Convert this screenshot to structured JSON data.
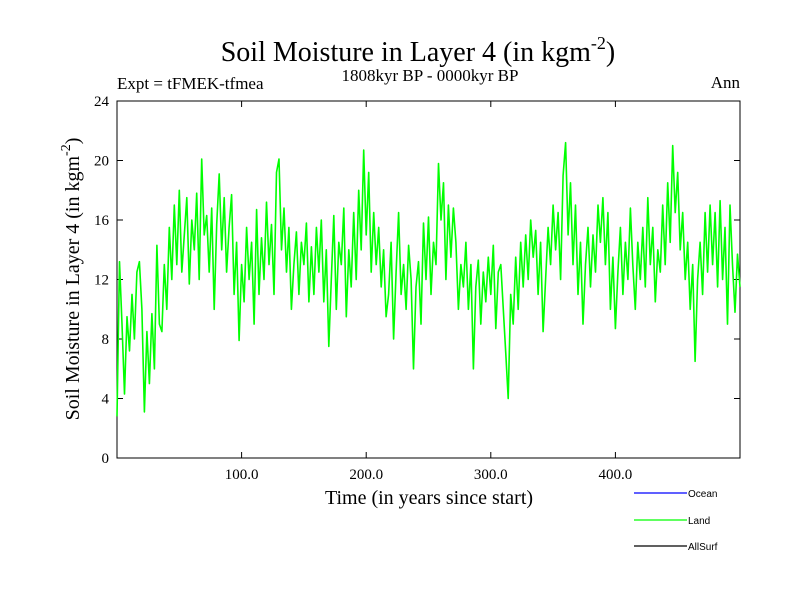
{
  "header": {
    "title_main": "Soil Moisture in Layer 4 (in kgm",
    "title_sup": "-2",
    "title_close": ")",
    "subtitle": "1808kyr BP - 0000kyr BP",
    "expt": "Expt = tFMEK-tfmea",
    "season": "Ann"
  },
  "legend": {
    "items": [
      {
        "label": "Ocean",
        "color": "#0000ff"
      },
      {
        "label": "Land",
        "color": "#00ff00"
      },
      {
        "label": "AllSurf",
        "color": "#000000"
      }
    ]
  },
  "chart_data": {
    "type": "line",
    "title": "Soil Moisture in Layer 4 (in kgm-2)",
    "xlabel": "Time (in years since start)",
    "ylabel_main": "Soil Moisture in Layer 4 (in kgm",
    "ylabel_sup": "-2",
    "ylabel_close": ")",
    "xlim": [
      0,
      500
    ],
    "ylim": [
      0,
      24
    ],
    "x_ticks": [
      100,
      200,
      300,
      400
    ],
    "x_tick_labels": [
      "100.0",
      "200.0",
      "300.0",
      "400.0"
    ],
    "y_ticks": [
      0,
      4,
      8,
      12,
      16,
      20,
      24
    ],
    "y_tick_labels": [
      "0",
      "4",
      "8",
      "12",
      "16",
      "20",
      "24"
    ],
    "series": [
      {
        "name": "Land",
        "color": "#00ff00",
        "points": [
          [
            0,
            2.8
          ],
          [
            2,
            13.2
          ],
          [
            4,
            9
          ],
          [
            6,
            4.3
          ],
          [
            8,
            9.5
          ],
          [
            10,
            7.2
          ],
          [
            12,
            11
          ],
          [
            14,
            8
          ],
          [
            16,
            12.5
          ],
          [
            18,
            13.2
          ],
          [
            20,
            10
          ],
          [
            22,
            3.1
          ],
          [
            24,
            8.5
          ],
          [
            26,
            5
          ],
          [
            28,
            9.7
          ],
          [
            30,
            6
          ],
          [
            32,
            14.3
          ],
          [
            34,
            9
          ],
          [
            36,
            8.5
          ],
          [
            38,
            13
          ],
          [
            40,
            10
          ],
          [
            42,
            15.5
          ],
          [
            44,
            12
          ],
          [
            46,
            17
          ],
          [
            48,
            13
          ],
          [
            50,
            18
          ],
          [
            52,
            12.5
          ],
          [
            54,
            15
          ],
          [
            56,
            17.5
          ],
          [
            58,
            11.7
          ],
          [
            60,
            16
          ],
          [
            62,
            14
          ],
          [
            64,
            17.8
          ],
          [
            66,
            12
          ],
          [
            68,
            20.1
          ],
          [
            70,
            15
          ],
          [
            72,
            16.3
          ],
          [
            74,
            12.5
          ],
          [
            76,
            16.8
          ],
          [
            78,
            10
          ],
          [
            80,
            15.7
          ],
          [
            82,
            19.1
          ],
          [
            84,
            14
          ],
          [
            86,
            17.5
          ],
          [
            88,
            12.5
          ],
          [
            90,
            15.5
          ],
          [
            92,
            17.7
          ],
          [
            94,
            11
          ],
          [
            96,
            14.5
          ],
          [
            98,
            7.9
          ],
          [
            100,
            13
          ],
          [
            102,
            10.5
          ],
          [
            104,
            15.5
          ],
          [
            106,
            12
          ],
          [
            108,
            14.5
          ],
          [
            110,
            9
          ],
          [
            112,
            16.7
          ],
          [
            114,
            11
          ],
          [
            116,
            14.8
          ],
          [
            118,
            12
          ],
          [
            120,
            17.2
          ],
          [
            122,
            13
          ],
          [
            124,
            15.7
          ],
          [
            126,
            11
          ],
          [
            128,
            19.2
          ],
          [
            130,
            20.1
          ],
          [
            132,
            14
          ],
          [
            134,
            16.8
          ],
          [
            136,
            12.5
          ],
          [
            138,
            15.5
          ],
          [
            140,
            10
          ],
          [
            142,
            13
          ],
          [
            144,
            15.2
          ],
          [
            146,
            11
          ],
          [
            148,
            14.5
          ],
          [
            150,
            13
          ],
          [
            152,
            15.8
          ],
          [
            154,
            10.5
          ],
          [
            156,
            14.2
          ],
          [
            158,
            11
          ],
          [
            160,
            15.5
          ],
          [
            162,
            12.5
          ],
          [
            164,
            16
          ],
          [
            166,
            10.5
          ],
          [
            168,
            14
          ],
          [
            170,
            7.5
          ],
          [
            172,
            12
          ],
          [
            174,
            16.3
          ],
          [
            176,
            10
          ],
          [
            178,
            14.5
          ],
          [
            180,
            13
          ],
          [
            182,
            16.8
          ],
          [
            184,
            9.5
          ],
          [
            186,
            14
          ],
          [
            188,
            11.5
          ],
          [
            190,
            16.5
          ],
          [
            192,
            12
          ],
          [
            194,
            18
          ],
          [
            196,
            14
          ],
          [
            198,
            20.7
          ],
          [
            200,
            15
          ],
          [
            202,
            19.2
          ],
          [
            204,
            12.5
          ],
          [
            206,
            16.5
          ],
          [
            208,
            13
          ],
          [
            210,
            15.5
          ],
          [
            212,
            11.5
          ],
          [
            214,
            14
          ],
          [
            216,
            9.5
          ],
          [
            218,
            11
          ],
          [
            220,
            14.5
          ],
          [
            222,
            8
          ],
          [
            224,
            12.5
          ],
          [
            226,
            16.5
          ],
          [
            228,
            11
          ],
          [
            230,
            13
          ],
          [
            232,
            10
          ],
          [
            234,
            14.3
          ],
          [
            236,
            12
          ],
          [
            238,
            6
          ],
          [
            240,
            11.5
          ],
          [
            242,
            13.2
          ],
          [
            244,
            9
          ],
          [
            246,
            15.8
          ],
          [
            248,
            12
          ],
          [
            250,
            16.2
          ],
          [
            252,
            11
          ],
          [
            254,
            14.5
          ],
          [
            256,
            13
          ],
          [
            258,
            19.8
          ],
          [
            260,
            16
          ],
          [
            262,
            18.5
          ],
          [
            264,
            12
          ],
          [
            266,
            17
          ],
          [
            268,
            13.5
          ],
          [
            270,
            16.8
          ],
          [
            272,
            14.5
          ],
          [
            274,
            10
          ],
          [
            276,
            13
          ],
          [
            278,
            11.5
          ],
          [
            280,
            14.5
          ],
          [
            282,
            10
          ],
          [
            284,
            13
          ],
          [
            286,
            6
          ],
          [
            288,
            11.5
          ],
          [
            290,
            13.3
          ],
          [
            292,
            9
          ],
          [
            294,
            12.5
          ],
          [
            296,
            10.5
          ],
          [
            298,
            13.5
          ],
          [
            300,
            11
          ],
          [
            302,
            14.3
          ],
          [
            304,
            8.7
          ],
          [
            306,
            12.5
          ],
          [
            308,
            13
          ],
          [
            310,
            10
          ],
          [
            312,
            7
          ],
          [
            314,
            4
          ],
          [
            316,
            11
          ],
          [
            318,
            9
          ],
          [
            320,
            13.5
          ],
          [
            322,
            10
          ],
          [
            324,
            14.5
          ],
          [
            326,
            11.5
          ],
          [
            328,
            15
          ],
          [
            330,
            12
          ],
          [
            332,
            16
          ],
          [
            334,
            13.5
          ],
          [
            336,
            15.3
          ],
          [
            338,
            11
          ],
          [
            340,
            14.5
          ],
          [
            342,
            8.5
          ],
          [
            344,
            12
          ],
          [
            346,
            15.5
          ],
          [
            348,
            13
          ],
          [
            350,
            17
          ],
          [
            352,
            14
          ],
          [
            354,
            16.5
          ],
          [
            356,
            12
          ],
          [
            358,
            19
          ],
          [
            360,
            21.2
          ],
          [
            362,
            15
          ],
          [
            364,
            18.5
          ],
          [
            366,
            13
          ],
          [
            368,
            17
          ],
          [
            370,
            11
          ],
          [
            372,
            14.5
          ],
          [
            374,
            9
          ],
          [
            376,
            13
          ],
          [
            378,
            15.5
          ],
          [
            380,
            11.5
          ],
          [
            382,
            15
          ],
          [
            384,
            12.5
          ],
          [
            386,
            17
          ],
          [
            388,
            14.5
          ],
          [
            390,
            17.5
          ],
          [
            392,
            13
          ],
          [
            394,
            16.5
          ],
          [
            396,
            10
          ],
          [
            398,
            13.5
          ],
          [
            400,
            8.7
          ],
          [
            402,
            12.5
          ],
          [
            404,
            15.5
          ],
          [
            406,
            11
          ],
          [
            408,
            14.5
          ],
          [
            410,
            12
          ],
          [
            412,
            16.8
          ],
          [
            414,
            13
          ],
          [
            416,
            10
          ],
          [
            418,
            14.5
          ],
          [
            420,
            12
          ],
          [
            422,
            15.5
          ],
          [
            424,
            11.5
          ],
          [
            426,
            17.5
          ],
          [
            428,
            13
          ],
          [
            430,
            15.5
          ],
          [
            432,
            10.5
          ],
          [
            434,
            14
          ],
          [
            436,
            12.5
          ],
          [
            438,
            17
          ],
          [
            440,
            13
          ],
          [
            442,
            18.5
          ],
          [
            444,
            14.5
          ],
          [
            446,
            21
          ],
          [
            448,
            16.5
          ],
          [
            450,
            19.2
          ],
          [
            452,
            14
          ],
          [
            454,
            16.5
          ],
          [
            456,
            12
          ],
          [
            458,
            14.5
          ],
          [
            460,
            10
          ],
          [
            462,
            13
          ],
          [
            464,
            6.5
          ],
          [
            466,
            12
          ],
          [
            468,
            14.5
          ],
          [
            470,
            11
          ],
          [
            472,
            16.5
          ],
          [
            474,
            12.5
          ],
          [
            476,
            17
          ],
          [
            478,
            13
          ],
          [
            480,
            16.5
          ],
          [
            482,
            11.5
          ],
          [
            484,
            17.3
          ],
          [
            486,
            12
          ],
          [
            488,
            15.5
          ],
          [
            490,
            9
          ],
          [
            492,
            17
          ],
          [
            494,
            13
          ],
          [
            496,
            9.8
          ],
          [
            498,
            13.7
          ],
          [
            500,
            11.5
          ]
        ]
      }
    ]
  }
}
